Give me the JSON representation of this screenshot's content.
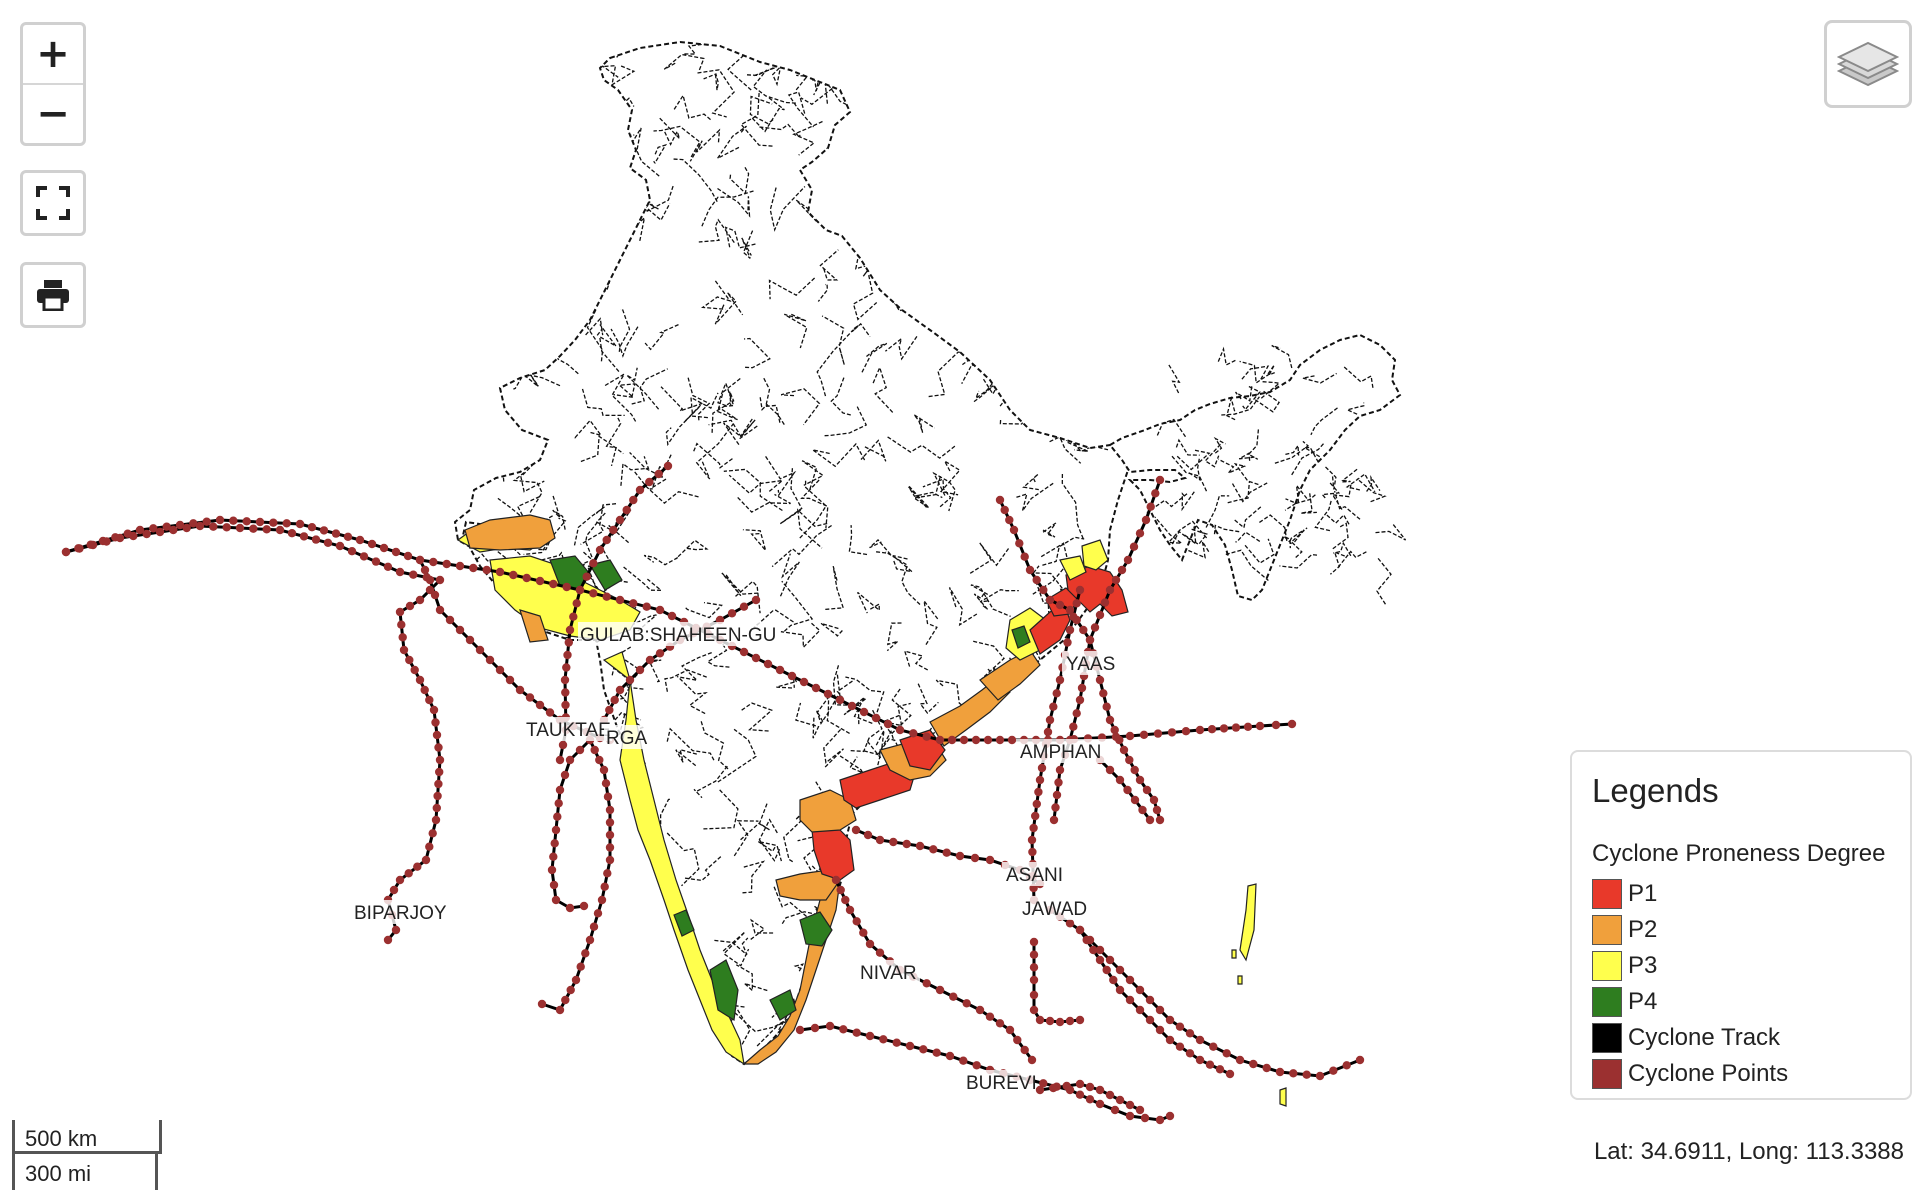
{
  "controls": {
    "zoom_in": "+",
    "zoom_out": "−",
    "fullscreen_icon": "fullscreen-icon",
    "print_icon": "printer-icon",
    "layers_icon": "layers-icon"
  },
  "legend": {
    "title": "Legends",
    "subtitle": "Cyclone Proneness Degree",
    "items": [
      {
        "label": "P1",
        "color": "#e8392a"
      },
      {
        "label": "P2",
        "color": "#f0a03c"
      },
      {
        "label": "P3",
        "color": "#ffff4d"
      },
      {
        "label": "P4",
        "color": "#2e7d1f"
      },
      {
        "label": "Cyclone Track",
        "color": "#000000"
      },
      {
        "label": "Cyclone Points",
        "color": "#9b3030"
      }
    ]
  },
  "scale": {
    "km": "500 km",
    "mi": "300 mi"
  },
  "coordinates": "Lat: 34.6911, Long: 113.3388",
  "cyclone_names": [
    "GULAB:SHAHEEN-GU",
    "YAAS",
    "TAUKTAE",
    "RGA",
    "AMPHAN",
    "ASANI",
    "JAWAD",
    "BIPARJOY",
    "NIVAR",
    "BUREVI"
  ],
  "colors": {
    "track": "#000000",
    "points": "#9b3030",
    "boundary": "#111111"
  }
}
